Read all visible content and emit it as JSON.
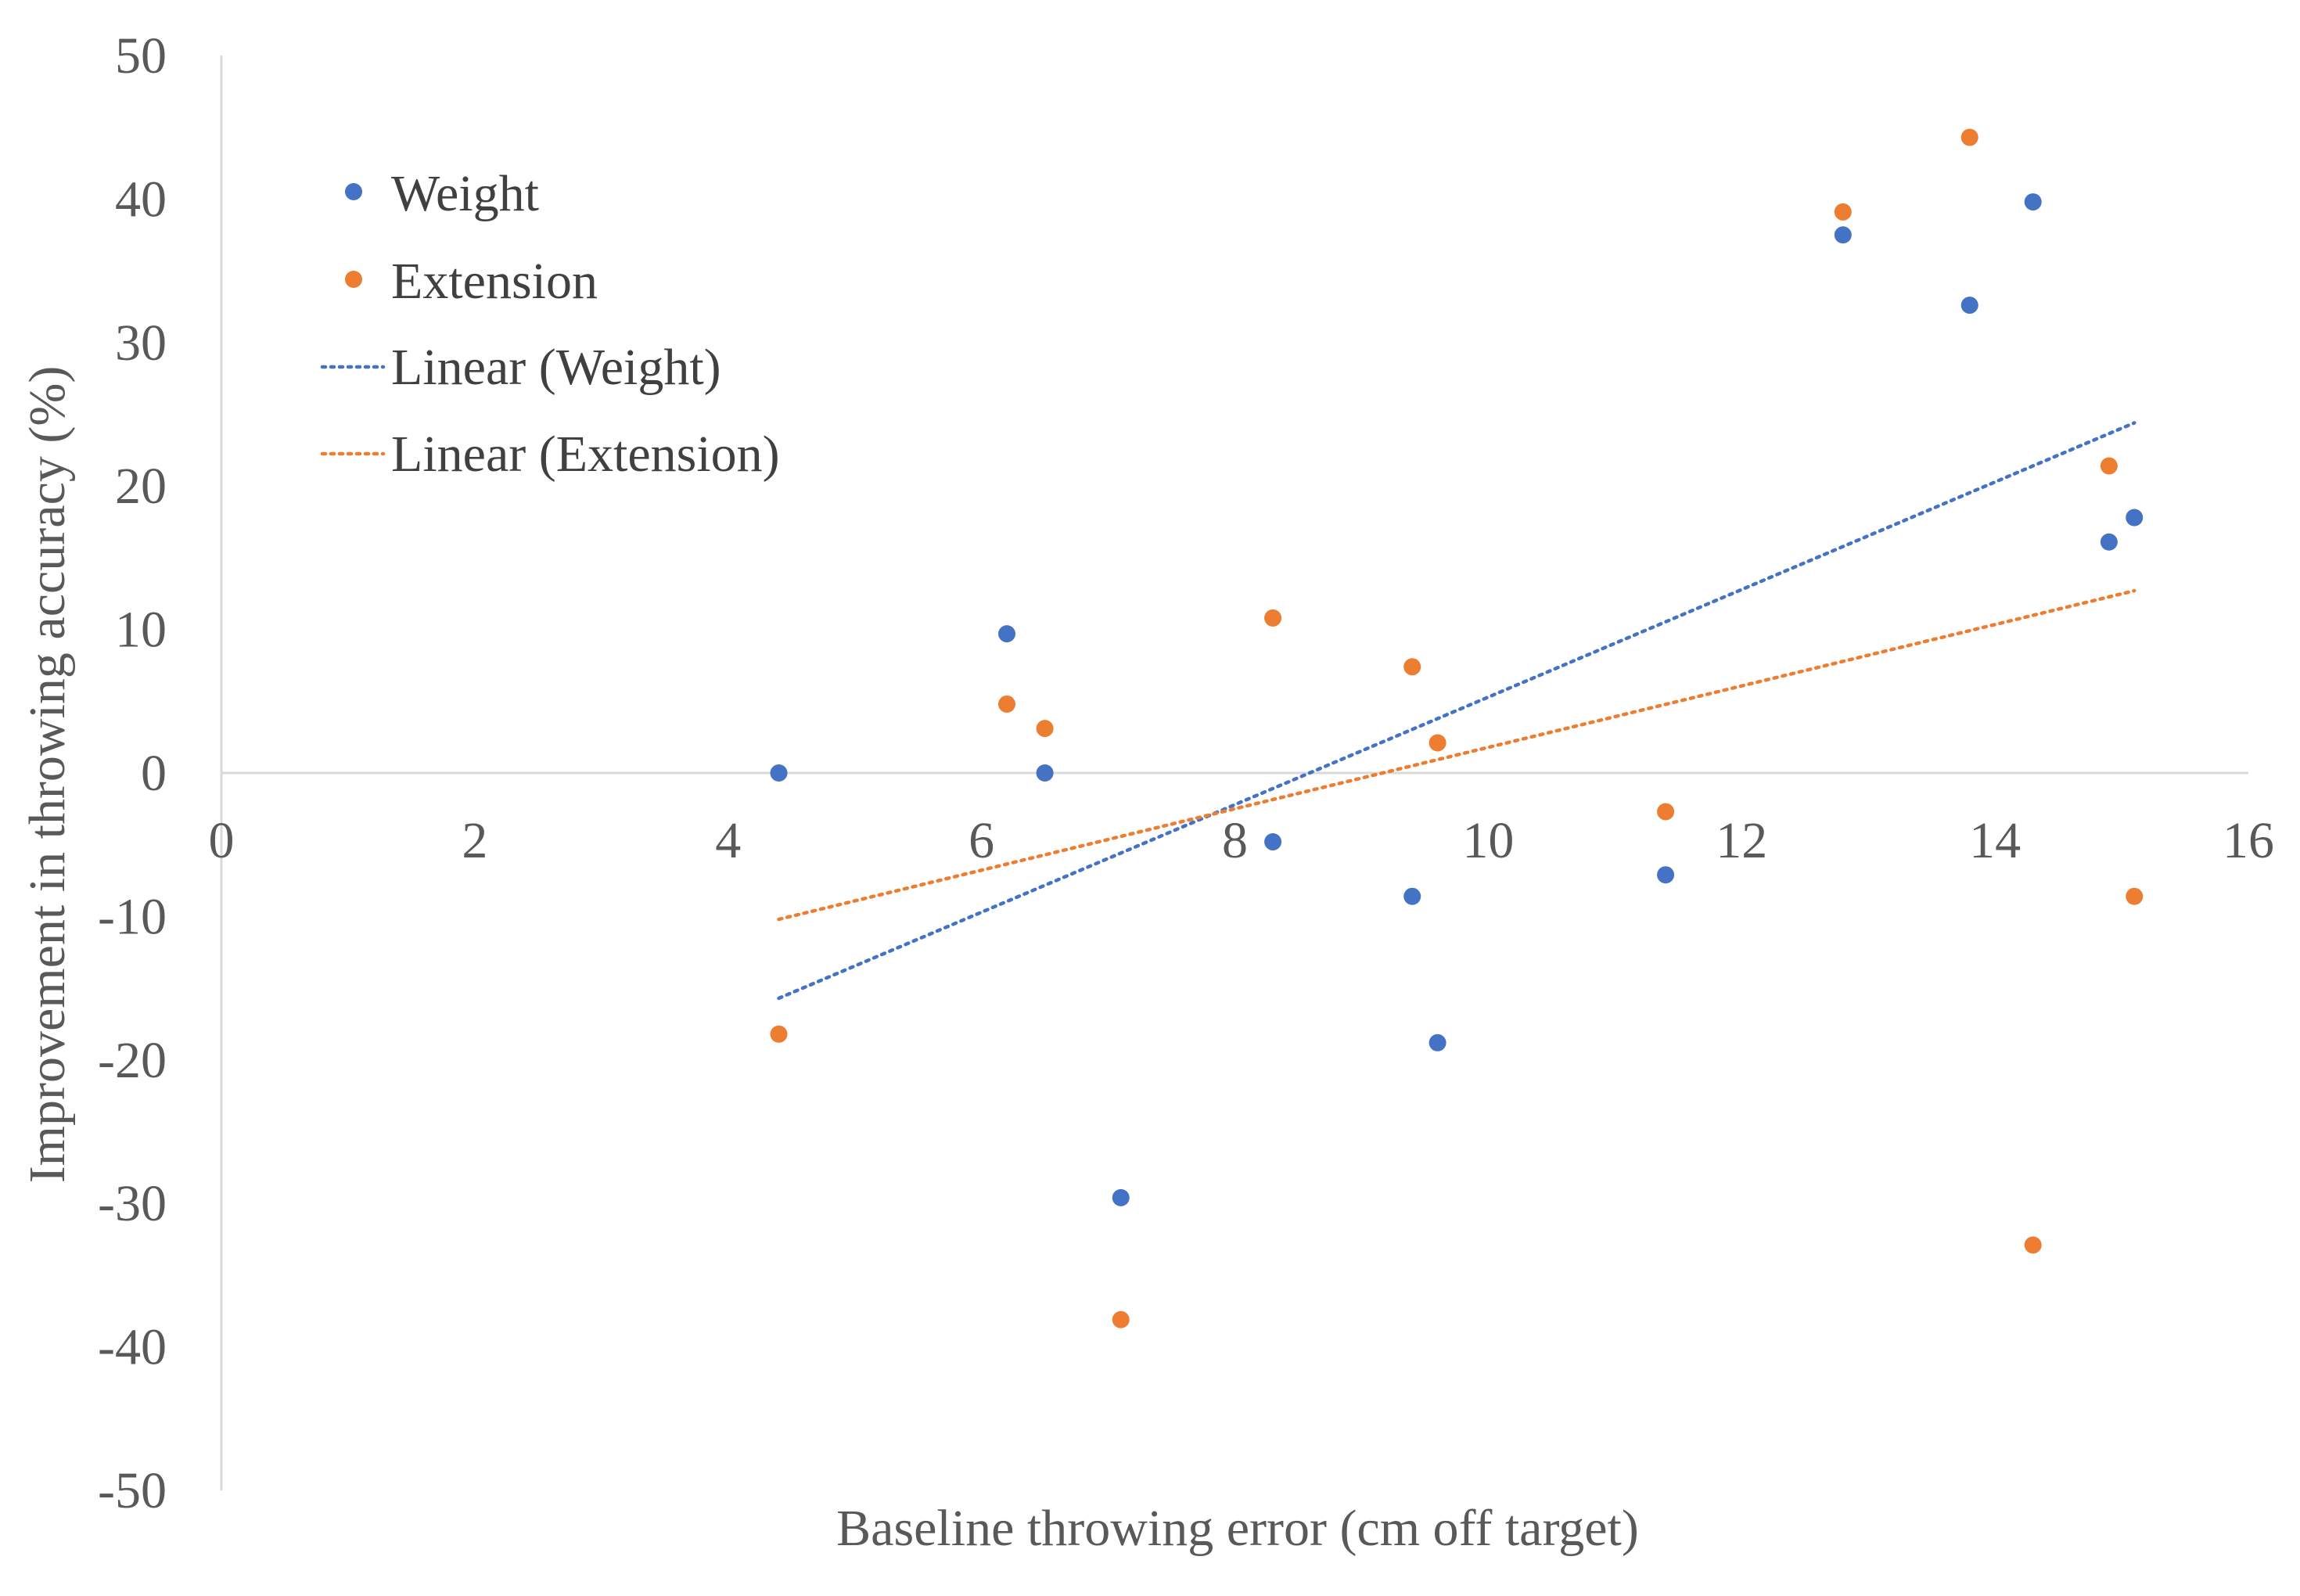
{
  "chart_data": {
    "type": "scatter",
    "title": "",
    "xlabel": "Baseline throwing error (cm off target)",
    "ylabel": "Improvement in throwing accuracy (%)",
    "xlim": [
      0,
      16
    ],
    "ylim": [
      -50,
      50
    ],
    "x_ticks": [
      0,
      2,
      4,
      6,
      8,
      10,
      12,
      14,
      16
    ],
    "y_ticks": [
      50,
      40,
      30,
      20,
      10,
      0,
      -10,
      -20,
      -30,
      -40,
      -50
    ],
    "grid": false,
    "legend_position": "top-left",
    "series": [
      {
        "name": "Weight",
        "color": "#4472C4",
        "points": [
          {
            "x": 4.4,
            "y": 0
          },
          {
            "x": 6.2,
            "y": 9.7
          },
          {
            "x": 6.5,
            "y": 0
          },
          {
            "x": 7.1,
            "y": -29.6
          },
          {
            "x": 8.3,
            "y": -4.8
          },
          {
            "x": 9.4,
            "y": -8.6
          },
          {
            "x": 9.6,
            "y": -18.8
          },
          {
            "x": 11.4,
            "y": -7.1
          },
          {
            "x": 12.8,
            "y": 37.5
          },
          {
            "x": 13.8,
            "y": 32.6
          },
          {
            "x": 14.3,
            "y": 39.8
          },
          {
            "x": 14.9,
            "y": 16.1
          },
          {
            "x": 15.1,
            "y": 17.8
          }
        ]
      },
      {
        "name": "Extension",
        "color": "#ED7D31",
        "points": [
          {
            "x": 4.4,
            "y": -18.2
          },
          {
            "x": 6.2,
            "y": 4.8
          },
          {
            "x": 6.5,
            "y": 3.1
          },
          {
            "x": 7.1,
            "y": -38.1
          },
          {
            "x": 8.3,
            "y": 10.8
          },
          {
            "x": 9.4,
            "y": 7.4
          },
          {
            "x": 9.6,
            "y": 2.1
          },
          {
            "x": 11.4,
            "y": -2.7
          },
          {
            "x": 12.8,
            "y": 39.1
          },
          {
            "x": 13.8,
            "y": 44.3
          },
          {
            "x": 14.3,
            "y": -32.9
          },
          {
            "x": 14.9,
            "y": 21.4
          },
          {
            "x": 15.1,
            "y": -8.6
          }
        ]
      }
    ],
    "trendlines": [
      {
        "name": "Linear (Weight)",
        "color": "#4472C4",
        "style": "dotted",
        "x": [
          4.4,
          15.1
        ],
        "y": [
          -15.7,
          24.4
        ]
      },
      {
        "name": "Linear (Extension)",
        "color": "#ED7D31",
        "style": "dotted",
        "x": [
          4.4,
          15.1
        ],
        "y": [
          -10.2,
          12.7
        ]
      }
    ]
  }
}
